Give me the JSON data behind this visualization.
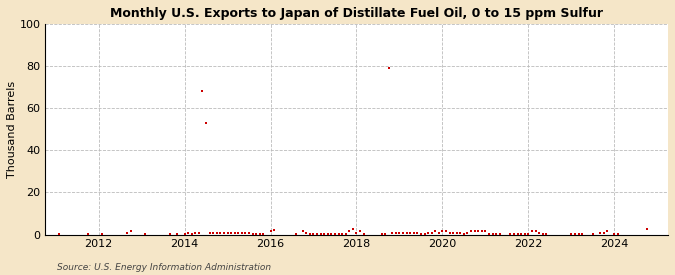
{
  "title": "Monthly U.S. Exports to Japan of Distillate Fuel Oil, 0 to 15 ppm Sulfur",
  "ylabel": "Thousand Barrels",
  "source": "Source: U.S. Energy Information Administration",
  "fig_background_color": "#f5e6c8",
  "plot_background_color": "#ffffff",
  "marker_color": "#cc0000",
  "ylim": [
    0,
    100
  ],
  "yticks": [
    0,
    20,
    40,
    60,
    80,
    100
  ],
  "xlim_start": 2010.75,
  "xlim_end": 2025.25,
  "xticks": [
    2012,
    2014,
    2016,
    2018,
    2020,
    2022,
    2024
  ],
  "data": [
    [
      2011.083,
      0.3
    ],
    [
      2011.75,
      0.3
    ],
    [
      2012.083,
      0.5
    ],
    [
      2012.667,
      1.0
    ],
    [
      2012.75,
      1.5
    ],
    [
      2013.083,
      0.3
    ],
    [
      2013.667,
      0.3
    ],
    [
      2013.833,
      0.3
    ],
    [
      2014.0,
      0.3
    ],
    [
      2014.083,
      1.0
    ],
    [
      2014.167,
      0.5
    ],
    [
      2014.25,
      1.0
    ],
    [
      2014.333,
      1.0
    ],
    [
      2014.417,
      68
    ],
    [
      2014.5,
      53
    ],
    [
      2014.583,
      1.0
    ],
    [
      2014.667,
      1.0
    ],
    [
      2014.75,
      1.0
    ],
    [
      2014.833,
      1.0
    ],
    [
      2014.917,
      1.0
    ],
    [
      2015.0,
      1.0
    ],
    [
      2015.083,
      1.0
    ],
    [
      2015.167,
      1.0
    ],
    [
      2015.25,
      1.0
    ],
    [
      2015.333,
      1.0
    ],
    [
      2015.417,
      1.0
    ],
    [
      2015.5,
      1.0
    ],
    [
      2015.583,
      0.3
    ],
    [
      2015.667,
      0.5
    ],
    [
      2015.75,
      0.5
    ],
    [
      2015.833,
      0.3
    ],
    [
      2016.0,
      1.5
    ],
    [
      2016.083,
      2.0
    ],
    [
      2016.583,
      0.3
    ],
    [
      2016.75,
      1.5
    ],
    [
      2016.833,
      1.0
    ],
    [
      2016.917,
      0.5
    ],
    [
      2017.0,
      0.3
    ],
    [
      2017.083,
      0.3
    ],
    [
      2017.167,
      0.3
    ],
    [
      2017.25,
      0.5
    ],
    [
      2017.333,
      0.3
    ],
    [
      2017.417,
      0.3
    ],
    [
      2017.5,
      0.3
    ],
    [
      2017.583,
      0.3
    ],
    [
      2017.667,
      0.3
    ],
    [
      2017.75,
      0.3
    ],
    [
      2017.833,
      1.5
    ],
    [
      2017.917,
      2.5
    ],
    [
      2018.0,
      1.0
    ],
    [
      2018.083,
      1.5
    ],
    [
      2018.167,
      0.5
    ],
    [
      2018.583,
      0.5
    ],
    [
      2018.667,
      0.5
    ],
    [
      2018.75,
      79
    ],
    [
      2018.833,
      1.0
    ],
    [
      2018.917,
      1.0
    ],
    [
      2019.0,
      1.0
    ],
    [
      2019.083,
      1.0
    ],
    [
      2019.167,
      1.0
    ],
    [
      2019.25,
      1.0
    ],
    [
      2019.333,
      1.0
    ],
    [
      2019.417,
      1.0
    ],
    [
      2019.5,
      0.5
    ],
    [
      2019.583,
      0.5
    ],
    [
      2019.667,
      1.0
    ],
    [
      2019.75,
      1.0
    ],
    [
      2019.833,
      1.5
    ],
    [
      2019.917,
      1.0
    ],
    [
      2020.0,
      1.5
    ],
    [
      2020.083,
      1.5
    ],
    [
      2020.167,
      1.0
    ],
    [
      2020.25,
      1.0
    ],
    [
      2020.333,
      1.0
    ],
    [
      2020.417,
      1.0
    ],
    [
      2020.5,
      0.5
    ],
    [
      2020.583,
      1.0
    ],
    [
      2020.667,
      1.5
    ],
    [
      2020.75,
      1.5
    ],
    [
      2020.833,
      1.5
    ],
    [
      2020.917,
      1.5
    ],
    [
      2021.0,
      1.5
    ],
    [
      2021.083,
      0.3
    ],
    [
      2021.167,
      0.5
    ],
    [
      2021.25,
      0.5
    ],
    [
      2021.333,
      0.3
    ],
    [
      2021.583,
      0.5
    ],
    [
      2021.667,
      0.5
    ],
    [
      2021.75,
      0.5
    ],
    [
      2021.833,
      0.3
    ],
    [
      2021.917,
      0.3
    ],
    [
      2022.0,
      0.3
    ],
    [
      2022.083,
      1.5
    ],
    [
      2022.167,
      1.5
    ],
    [
      2022.25,
      1.0
    ],
    [
      2022.333,
      0.5
    ],
    [
      2022.417,
      0.5
    ],
    [
      2023.0,
      0.3
    ],
    [
      2023.083,
      0.3
    ],
    [
      2023.167,
      0.3
    ],
    [
      2023.25,
      0.3
    ],
    [
      2023.5,
      0.5
    ],
    [
      2023.667,
      0.8
    ],
    [
      2023.75,
      1.0
    ],
    [
      2023.833,
      1.5
    ],
    [
      2024.0,
      0.3
    ],
    [
      2024.083,
      0.3
    ],
    [
      2024.75,
      2.5
    ]
  ]
}
